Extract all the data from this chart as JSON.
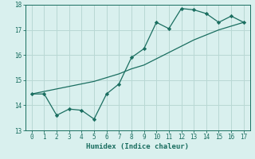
{
  "title": "",
  "xlabel": "Humidex (Indice chaleur)",
  "ylabel": "",
  "bg_color": "#d9f0ee",
  "grid_color": "#b8d8d4",
  "line_color": "#1a6e60",
  "x_data": [
    0,
    1,
    2,
    3,
    4,
    5,
    6,
    7,
    8,
    9,
    10,
    11,
    12,
    13,
    14,
    15,
    16,
    17
  ],
  "y_data": [
    14.45,
    14.45,
    13.6,
    13.85,
    13.8,
    13.45,
    14.45,
    14.85,
    15.9,
    16.25,
    17.3,
    17.05,
    17.85,
    17.8,
    17.65,
    17.3,
    17.55,
    17.3
  ],
  "y_line2": [
    14.45,
    14.55,
    14.65,
    14.75,
    14.85,
    14.95,
    15.1,
    15.25,
    15.45,
    15.6,
    15.85,
    16.1,
    16.35,
    16.6,
    16.8,
    17.0,
    17.15,
    17.3
  ],
  "ylim": [
    13.0,
    18.0
  ],
  "xlim": [
    -0.5,
    17.5
  ],
  "yticks": [
    13,
    14,
    15,
    16,
    17,
    18
  ],
  "xticks": [
    0,
    1,
    2,
    3,
    4,
    5,
    6,
    7,
    8,
    9,
    10,
    11,
    12,
    13,
    14,
    15,
    16,
    17
  ]
}
